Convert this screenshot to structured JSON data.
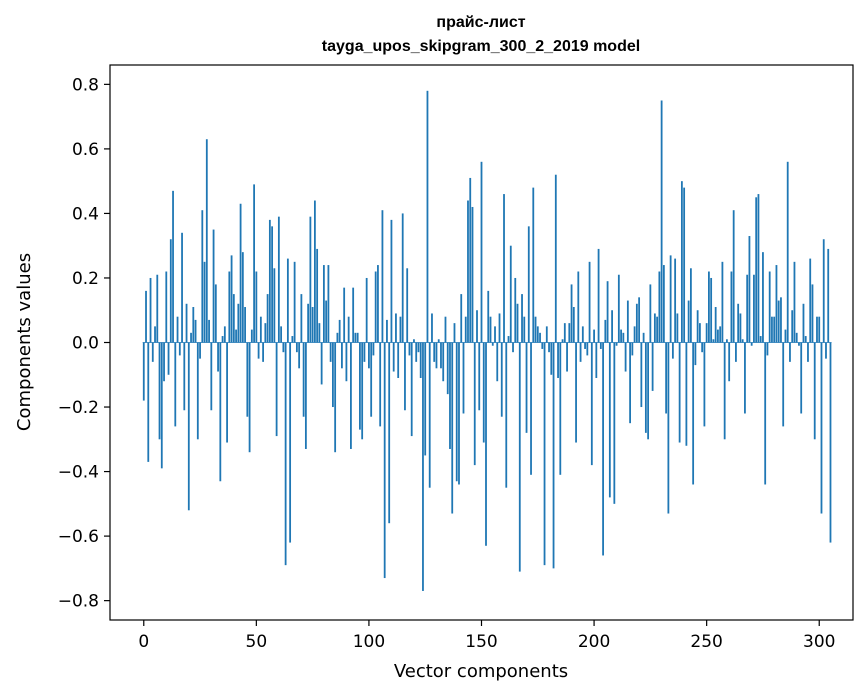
{
  "chart_data": {
    "type": "bar",
    "title": "прайс-лист",
    "subtitle": "tayga_upos_skipgram_300_2_2019 model",
    "xlabel": "Vector components",
    "ylabel": "Components values",
    "xlim": [
      -15,
      315
    ],
    "ylim": [
      -0.86,
      0.86
    ],
    "xticks": [
      0,
      50,
      100,
      150,
      200,
      250,
      300
    ],
    "xtick_labels": [
      "0",
      "50",
      "100",
      "150",
      "200",
      "250",
      "300"
    ],
    "yticks": [
      -0.8,
      -0.6,
      -0.4,
      -0.2,
      0.0,
      0.2,
      0.4,
      0.6,
      0.8
    ],
    "ytick_labels": [
      "−0.8",
      "−0.6",
      "−0.4",
      "−0.2",
      "0.0",
      "0.2",
      "0.4",
      "0.6",
      "0.8"
    ],
    "grid": false,
    "bar_color": "#1f77b4",
    "values": [
      -0.18,
      0.16,
      -0.37,
      0.2,
      -0.06,
      0.05,
      0.21,
      -0.3,
      -0.39,
      -0.12,
      0.22,
      -0.1,
      0.32,
      0.47,
      -0.26,
      0.08,
      -0.04,
      0.34,
      -0.21,
      0.12,
      -0.52,
      0.03,
      0.11,
      0.07,
      -0.3,
      -0.05,
      0.41,
      0.25,
      0.63,
      0.07,
      -0.21,
      0.35,
      0.18,
      -0.09,
      -0.43,
      0.02,
      0.05,
      -0.31,
      0.22,
      0.27,
      0.15,
      0.04,
      0.12,
      0.43,
      0.28,
      0.11,
      -0.23,
      -0.34,
      0.04,
      0.49,
      0.22,
      -0.05,
      0.08,
      -0.06,
      0.06,
      0.15,
      0.38,
      0.36,
      0.23,
      -0.29,
      0.39,
      0.05,
      -0.03,
      -0.69,
      0.26,
      -0.62,
      0.02,
      0.25,
      -0.03,
      -0.08,
      0.15,
      -0.23,
      -0.33,
      0.12,
      0.39,
      0.11,
      0.44,
      0.29,
      0.06,
      -0.13,
      0.24,
      0.13,
      0.24,
      -0.06,
      -0.2,
      -0.34,
      0.03,
      0.07,
      -0.08,
      0.17,
      -0.12,
      0.08,
      -0.33,
      0.17,
      0.03,
      0.03,
      -0.27,
      -0.3,
      -0.06,
      0.2,
      -0.08,
      -0.23,
      -0.04,
      0.22,
      0.24,
      -0.26,
      0.41,
      -0.73,
      0.07,
      -0.56,
      0.38,
      -0.09,
      0.09,
      -0.11,
      0.08,
      0.4,
      -0.21,
      0.23,
      -0.04,
      -0.29,
      0.01,
      -0.06,
      -0.03,
      -0.11,
      -0.77,
      -0.35,
      0.78,
      -0.45,
      0.09,
      -0.06,
      -0.08,
      0.01,
      -0.08,
      -0.12,
      0.08,
      -0.16,
      -0.33,
      -0.53,
      0.06,
      -0.43,
      -0.44,
      0.15,
      -0.22,
      0.08,
      0.44,
      0.51,
      0.42,
      -0.38,
      0.1,
      -0.21,
      0.56,
      -0.31,
      -0.63,
      0.16,
      0.08,
      -0.01,
      0.05,
      -0.12,
      0.09,
      -0.23,
      0.46,
      -0.45,
      0.02,
      0.3,
      -0.03,
      0.2,
      0.12,
      -0.71,
      0.15,
      0.08,
      -0.28,
      0.36,
      -0.41,
      0.48,
      0.08,
      0.05,
      0.03,
      -0.02,
      -0.69,
      0.05,
      -0.03,
      -0.1,
      -0.7,
      0.52,
      -0.11,
      -0.41,
      0.01,
      0.06,
      -0.09,
      0.06,
      0.18,
      0.11,
      -0.31,
      0.22,
      -0.06,
      0.05,
      -0.02,
      -0.04,
      0.25,
      -0.38,
      0.04,
      -0.11,
      0.29,
      -0.02,
      -0.66,
      0.07,
      0.19,
      -0.48,
      0.1,
      -0.5,
      -0.01,
      0.21,
      0.04,
      0.03,
      -0.09,
      0.13,
      -0.25,
      -0.04,
      0.05,
      0.12,
      0.14,
      -0.2,
      0.03,
      -0.28,
      -0.3,
      0.18,
      -0.15,
      0.09,
      0.08,
      0.22,
      0.75,
      0.24,
      -0.22,
      -0.53,
      0.27,
      -0.05,
      0.26,
      0.09,
      -0.31,
      0.5,
      0.48,
      -0.32,
      0.13,
      0.23,
      -0.44,
      -0.07,
      0.1,
      0.06,
      -0.03,
      -0.26,
      0.06,
      0.22,
      0.2,
      0.01,
      0.11,
      0.04,
      0.05,
      0.25,
      -0.3,
      0.01,
      -0.12,
      0.22,
      0.41,
      -0.06,
      0.12,
      0.09,
      0.01,
      -0.22,
      0.21,
      0.33,
      -0.01,
      0.21,
      0.45,
      0.46,
      0.02,
      0.28,
      -0.44,
      -0.04,
      0.22,
      0.08,
      0.08,
      0.24,
      0.13,
      0.14,
      -0.26,
      0.04,
      0.56,
      -0.06,
      0.1,
      0.25,
      0.03,
      -0.01,
      -0.22,
      0.12,
      0.02,
      -0.06,
      0.26,
      0.18,
      -0.3,
      0.08,
      0.08,
      -0.53,
      0.32,
      -0.05,
      0.29,
      -0.62
    ]
  }
}
